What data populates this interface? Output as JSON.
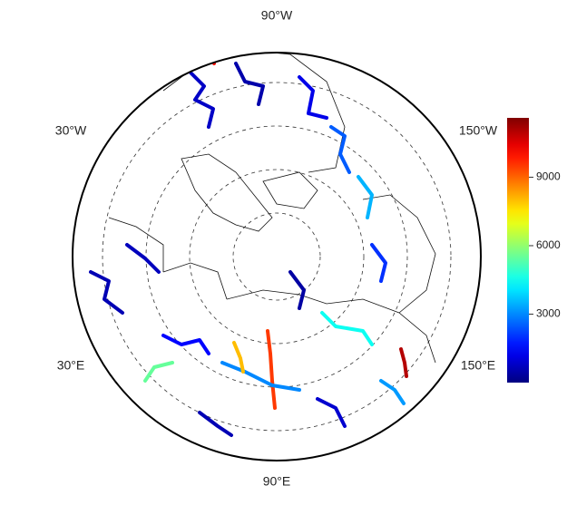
{
  "map": {
    "lon_labels": [
      "90°W",
      "30°W",
      "150°W",
      "30°E",
      "150°E",
      "90°E"
    ],
    "colorbar": {
      "lim": [
        0,
        11600
      ],
      "ticks": [
        3000,
        6000,
        9000
      ]
    },
    "river_values": [
      800,
      500,
      1200,
      2500,
      3500,
      600,
      9500,
      11000,
      4500,
      5500,
      3000,
      1500,
      700,
      400,
      2000,
      10000,
      8000,
      3200,
      900,
      600
    ]
  }
}
